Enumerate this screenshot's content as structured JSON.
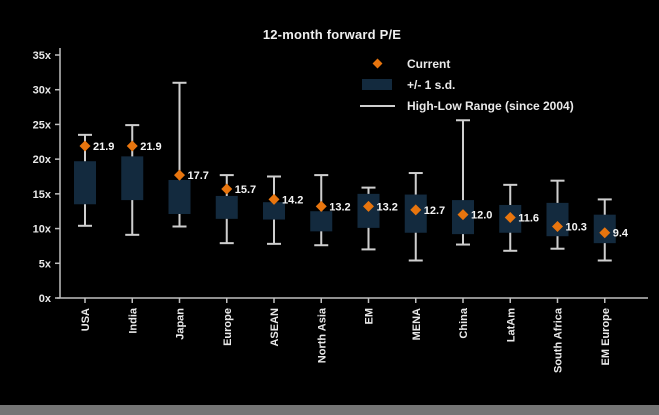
{
  "colors": {
    "background": "#000000",
    "box": "#132A3E",
    "diamond": "#E8750E",
    "whisker": "#CFCFCF",
    "axis": "#BFBFBF",
    "text": "#E9E9E9"
  },
  "legend": [
    {
      "label": "Current",
      "marker": "diamond"
    },
    {
      "label": "+/- 1 s.d.",
      "marker": "box"
    },
    {
      "label": "High-Low Range (since 2004)",
      "marker": "line"
    }
  ],
  "chart_data": {
    "type": "boxplot",
    "title": "12-month forward P/E",
    "xlabel": "",
    "ylabel": "",
    "ylim": [
      0,
      35
    ],
    "y_ticks": [
      "0x",
      "5x",
      "10x",
      "15x",
      "20x",
      "25x",
      "30x",
      "35x"
    ],
    "grid": false,
    "legend_position": "upper-right",
    "points": [
      {
        "category": "USA",
        "current": 21.9,
        "sd_high": 19.7,
        "sd_low": 13.5,
        "high": 23.5,
        "low": 10.4
      },
      {
        "category": "India",
        "current": 21.9,
        "sd_high": 20.4,
        "sd_low": 14.1,
        "high": 24.9,
        "low": 9.1
      },
      {
        "category": "Japan",
        "current": 17.7,
        "sd_high": 17.0,
        "sd_low": 12.1,
        "high": 31.0,
        "low": 10.3
      },
      {
        "category": "Europe",
        "current": 15.7,
        "sd_high": 14.7,
        "sd_low": 11.4,
        "high": 17.7,
        "low": 7.9
      },
      {
        "category": "ASEAN",
        "current": 14.2,
        "sd_high": 13.8,
        "sd_low": 11.3,
        "high": 17.5,
        "low": 7.8
      },
      {
        "category": "North Asia",
        "current": 13.2,
        "sd_high": 12.5,
        "sd_low": 9.6,
        "high": 17.7,
        "low": 7.6
      },
      {
        "category": "EM",
        "current": 13.2,
        "sd_high": 15.0,
        "sd_low": 10.1,
        "high": 15.9,
        "low": 7.0
      },
      {
        "category": "MENA",
        "current": 12.7,
        "sd_high": 14.9,
        "sd_low": 9.4,
        "high": 18.0,
        "low": 5.4
      },
      {
        "category": "China",
        "current": 12.0,
        "sd_high": 14.1,
        "sd_low": 9.2,
        "high": 25.6,
        "low": 7.7
      },
      {
        "category": "LatAm",
        "current": 11.6,
        "sd_high": 13.4,
        "sd_low": 9.4,
        "high": 16.3,
        "low": 6.8
      },
      {
        "category": "South Africa",
        "current": 10.3,
        "sd_high": 13.7,
        "sd_low": 8.9,
        "high": 16.9,
        "low": 7.1
      },
      {
        "category": "EM Europe",
        "current": 9.4,
        "sd_high": 12.0,
        "sd_low": 7.9,
        "high": 14.2,
        "low": 5.4
      }
    ]
  }
}
